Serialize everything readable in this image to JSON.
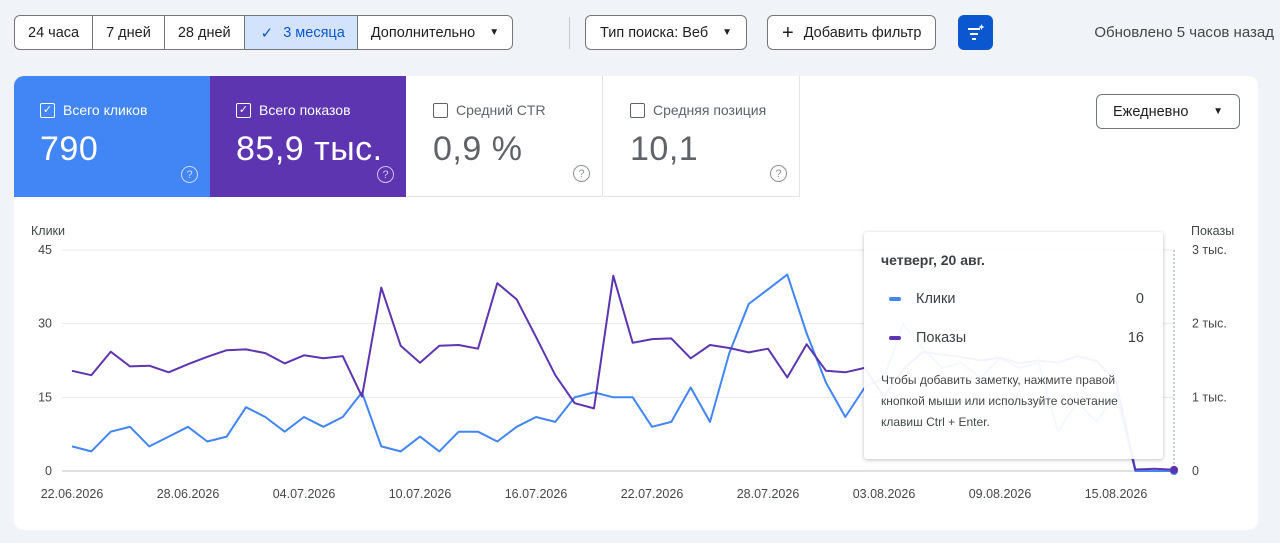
{
  "toolbar": {
    "ranges": [
      {
        "label": "24 часа",
        "active": false
      },
      {
        "label": "7 дней",
        "active": false
      },
      {
        "label": "28 дней",
        "active": false
      },
      {
        "label": "3 месяца",
        "active": true
      },
      {
        "label": "Дополнительно",
        "active": false
      }
    ],
    "search_type_label": "Тип поиска: Веб",
    "add_filter_label": "Добавить фильтр",
    "updated_text": "Обновлено 5 часов назад"
  },
  "metrics": [
    {
      "label": "Всего кликов",
      "value": "790",
      "checked": true,
      "color": "#4285f4"
    },
    {
      "label": "Всего показов",
      "value": "85,9 тыс.",
      "checked": true,
      "color": "#5e35b1"
    },
    {
      "label": "Средний CTR",
      "value": "0,9 %",
      "checked": false
    },
    {
      "label": "Средняя позиция",
      "value": "10,1",
      "checked": false
    }
  ],
  "period_select": {
    "value": "Ежедневно"
  },
  "tooltip": {
    "date": "четверг, 20 авг.",
    "rows": [
      {
        "name": "Клики",
        "value": "0",
        "color": "#4285f4"
      },
      {
        "name": "Показы",
        "value": "16",
        "color": "#5e35b1"
      }
    ],
    "note": "Чтобы добавить заметку, нажмите правой кнопкой мыши или используйте сочетание клавиш Ctrl + Enter."
  },
  "chart_data": {
    "type": "line",
    "left_axis": {
      "label": "Клики",
      "ylim": [
        0,
        45
      ],
      "ticks": [
        "0",
        "15",
        "30",
        "45"
      ]
    },
    "right_axis": {
      "label": "Показы",
      "ylim": [
        0,
        3000
      ],
      "ticks": [
        "0",
        "1 тыс.",
        "2 тыс.",
        "3 тыс."
      ]
    },
    "x_tick_labels": [
      "22.06.2026",
      "28.06.2026",
      "04.07.2026",
      "10.07.2026",
      "16.07.2026",
      "22.07.2026",
      "28.07.2026",
      "03.08.2026",
      "09.08.2026",
      "15.08.2026"
    ],
    "x_start": "22.06.2026",
    "grid": true,
    "series": [
      {
        "name": "Клики",
        "axis": "left",
        "color": "#4285f4",
        "values": [
          5,
          4,
          8,
          9,
          5,
          7,
          9,
          6,
          7,
          13,
          11,
          8,
          11,
          9,
          11,
          16,
          5,
          4,
          7,
          4,
          8,
          8,
          6,
          9,
          11,
          10,
          15,
          16,
          15,
          15,
          9,
          10,
          17,
          10,
          24,
          34,
          37,
          40,
          28,
          18,
          11,
          17,
          19,
          30,
          25,
          21,
          22,
          19,
          23,
          21,
          22,
          8,
          14,
          10,
          16,
          0,
          0,
          0
        ]
      },
      {
        "name": "Показы",
        "axis": "left",
        "color": "#5e35b1",
        "values": [
          1360,
          1300,
          1620,
          1420,
          1430,
          1340,
          1450,
          1550,
          1640,
          1650,
          1600,
          1460,
          1570,
          1530,
          1560,
          1010,
          2490,
          1700,
          1470,
          1700,
          1710,
          1660,
          2550,
          2330,
          1820,
          1300,
          920,
          850,
          2650,
          1740,
          1790,
          1800,
          1530,
          1710,
          1670,
          1610,
          1660,
          1270,
          1720,
          1360,
          1340,
          1400,
          1010,
          1380,
          1620,
          1580,
          1550,
          1500,
          1540,
          1460,
          1500,
          1470,
          1560,
          1490,
          1210,
          20,
          30,
          16
        ]
      }
    ]
  }
}
